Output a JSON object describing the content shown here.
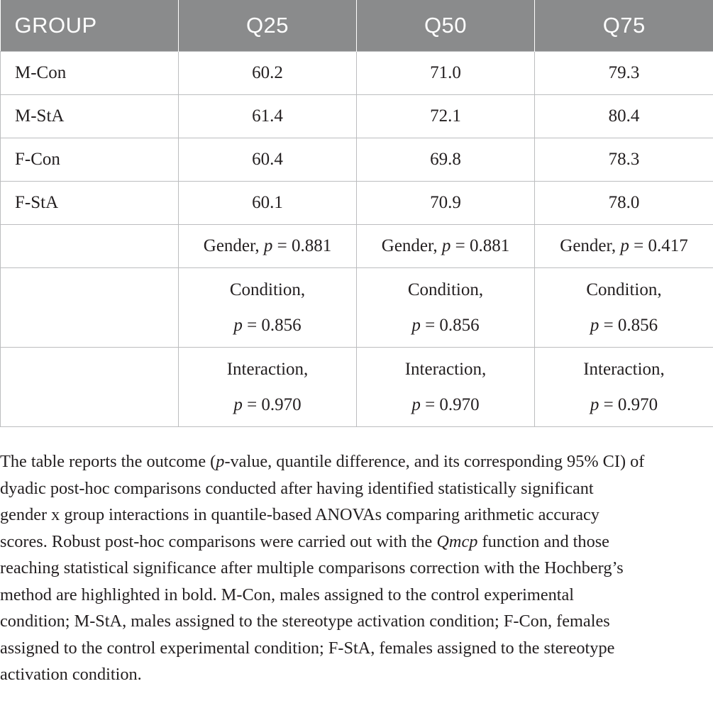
{
  "table": {
    "headers": [
      "GROUP",
      "Q25",
      "Q50",
      "Q75"
    ],
    "rows": [
      {
        "group": "M-Con",
        "q25": "60.2",
        "q50": "71.0",
        "q75": "79.3"
      },
      {
        "group": "M-StA",
        "q25": "61.4",
        "q50": "72.1",
        "q75": "80.4"
      },
      {
        "group": "F-Con",
        "q25": "60.4",
        "q50": "69.8",
        "q75": "78.3"
      },
      {
        "group": "F-StA",
        "q25": "60.1",
        "q50": "70.9",
        "q75": "78.0"
      }
    ],
    "stats": {
      "gender": {
        "label": "Gender,",
        "p_symbol": "p",
        "q25": "= 0.881",
        "q50": "= 0.881",
        "q75": "= 0.417"
      },
      "condition": {
        "label": "Condition,",
        "p_symbol": "p",
        "q25": "= 0.856",
        "q50": "= 0.856",
        "q75": "= 0.856"
      },
      "interaction": {
        "label": "Interaction,",
        "p_symbol": "p",
        "q25": "= 0.970",
        "q50": "= 0.970",
        "q75": "= 0.970"
      }
    }
  },
  "footnote": {
    "l1_a": "The table reports the outcome (",
    "l1_p": "p",
    "l1_b": "-value, quantile difference, and its corresponding 95% CI) of",
    "l2": "dyadic post-hoc comparisons conducted after having identified statistically significant",
    "l3": "gender x group interactions in quantile-based ANOVAs comparing arithmetic accuracy",
    "l4_a": "scores. Robust post-hoc comparisons were carried out with the ",
    "l4_fn": "Qmcp",
    "l4_b": " function and those",
    "l5": "reaching statistical significance after multiple comparisons correction with the Hochberg’s",
    "l6": "method are highlighted in bold. M-Con, males assigned to the control experimental",
    "l7": "condition; M-StA, males assigned to the stereotype activation condition; F-Con, females",
    "l8": "assigned to the control experimental condition; F-StA, females assigned to the stereotype",
    "l9": "activation condition."
  }
}
